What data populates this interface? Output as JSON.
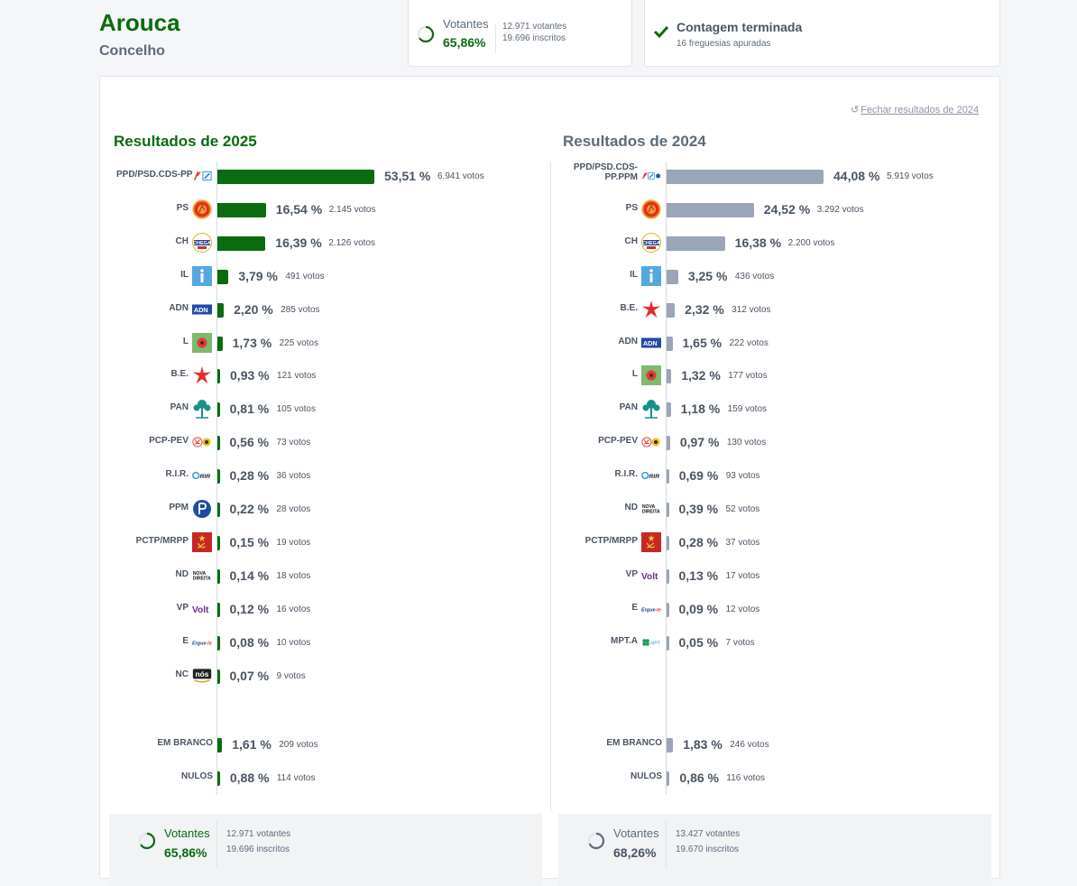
{
  "header": {
    "title": "Arouca",
    "subtitle": "Concelho"
  },
  "turnout": {
    "label": "Votantes",
    "percent": "65,86%",
    "voters": "12.971 votantes",
    "registered": "19.696 inscritos"
  },
  "count": {
    "title": "Contagem terminada",
    "subtitle": "16 freguesias apuradas"
  },
  "close_link": "Fechar resultados de 2024",
  "colors": {
    "current": "#0b6b10",
    "previous": "#9aa5b8",
    "text": "#4a5563"
  },
  "results_2025": {
    "title": "Resultados de 2025",
    "scale_max": 53.51,
    "parties": [
      {
        "name": "PPD/PSD.CDS-PP",
        "logo": "psd-cds-logo",
        "pct": "53,51 %",
        "value": 53.51,
        "votes": "6.941 votos"
      },
      {
        "name": "PS",
        "logo": "ps-logo",
        "pct": "16,54 %",
        "value": 16.54,
        "votes": "2.145 votos"
      },
      {
        "name": "CH",
        "logo": "chega-logo",
        "pct": "16,39 %",
        "value": 16.39,
        "votes": "2.126 votos"
      },
      {
        "name": "IL",
        "logo": "il-logo",
        "pct": "3,79 %",
        "value": 3.79,
        "votes": "491 votos"
      },
      {
        "name": "ADN",
        "logo": "adn-logo",
        "pct": "2,20 %",
        "value": 2.2,
        "votes": "285 votos"
      },
      {
        "name": "L",
        "logo": "livre-logo",
        "pct": "1,73 %",
        "value": 1.73,
        "votes": "225 votos"
      },
      {
        "name": "B.E.",
        "logo": "be-logo",
        "pct": "0,93 %",
        "value": 0.93,
        "votes": "121 votos"
      },
      {
        "name": "PAN",
        "logo": "pan-logo",
        "pct": "0,81 %",
        "value": 0.81,
        "votes": "105 votos"
      },
      {
        "name": "PCP-PEV",
        "logo": "pcp-pev-logo",
        "pct": "0,56 %",
        "value": 0.56,
        "votes": "73 votos"
      },
      {
        "name": "R.I.R.",
        "logo": "rir-logo",
        "pct": "0,28 %",
        "value": 0.28,
        "votes": "36 votos"
      },
      {
        "name": "PPM",
        "logo": "ppm-logo",
        "pct": "0,22 %",
        "value": 0.22,
        "votes": "28 votos"
      },
      {
        "name": "PCTP/MRPP",
        "logo": "pctp-logo",
        "pct": "0,15 %",
        "value": 0.15,
        "votes": "19 votos"
      },
      {
        "name": "ND",
        "logo": "nd-logo",
        "pct": "0,14 %",
        "value": 0.14,
        "votes": "18 votos"
      },
      {
        "name": "VP",
        "logo": "volt-logo",
        "pct": "0,12 %",
        "value": 0.12,
        "votes": "16 votos"
      },
      {
        "name": "E",
        "logo": "ergue-te-logo",
        "pct": "0,08 %",
        "value": 0.08,
        "votes": "10 votos"
      },
      {
        "name": "NC",
        "logo": "nos-cidadaos-logo",
        "pct": "0,07 %",
        "value": 0.07,
        "votes": "9 votos"
      }
    ],
    "blank": {
      "name": "EM BRANCO",
      "pct": "1,61 %",
      "value": 1.61,
      "votes": "209 votos"
    },
    "null": {
      "name": "NULOS",
      "pct": "0,88 %",
      "value": 0.88,
      "votes": "114 votos"
    },
    "turnout": {
      "label": "Votantes",
      "percent": "65,86%",
      "voters": "12.971 votantes",
      "registered": "19.696 inscritos"
    }
  },
  "results_2024": {
    "title": "Resultados de 2024",
    "scale_max": 44.08,
    "parties": [
      {
        "name": "PPD/PSD.CDS-PP.PPM",
        "logo": "psd-cds-ppm-logo",
        "pct": "44,08 %",
        "value": 44.08,
        "votes": "5.919 votos"
      },
      {
        "name": "PS",
        "logo": "ps-logo",
        "pct": "24,52 %",
        "value": 24.52,
        "votes": "3.292 votos"
      },
      {
        "name": "CH",
        "logo": "chega-logo",
        "pct": "16,38 %",
        "value": 16.38,
        "votes": "2.200 votos"
      },
      {
        "name": "IL",
        "logo": "il-logo",
        "pct": "3,25 %",
        "value": 3.25,
        "votes": "436 votos"
      },
      {
        "name": "B.E.",
        "logo": "be-logo",
        "pct": "2,32 %",
        "value": 2.32,
        "votes": "312 votos"
      },
      {
        "name": "ADN",
        "logo": "adn-logo",
        "pct": "1,65 %",
        "value": 1.65,
        "votes": "222 votos"
      },
      {
        "name": "L",
        "logo": "livre-logo",
        "pct": "1,32 %",
        "value": 1.32,
        "votes": "177 votos"
      },
      {
        "name": "PAN",
        "logo": "pan-logo",
        "pct": "1,18 %",
        "value": 1.18,
        "votes": "159 votos"
      },
      {
        "name": "PCP-PEV",
        "logo": "pcp-pev-logo",
        "pct": "0,97 %",
        "value": 0.97,
        "votes": "130 votos"
      },
      {
        "name": "R.I.R.",
        "logo": "rir-logo",
        "pct": "0,69 %",
        "value": 0.69,
        "votes": "93 votos"
      },
      {
        "name": "ND",
        "logo": "nd-logo",
        "pct": "0,39 %",
        "value": 0.39,
        "votes": "52 votos"
      },
      {
        "name": "PCTP/MRPP",
        "logo": "pctp-logo",
        "pct": "0,28 %",
        "value": 0.28,
        "votes": "37 votos"
      },
      {
        "name": "VP",
        "logo": "volt-logo",
        "pct": "0,13 %",
        "value": 0.13,
        "votes": "17 votos"
      },
      {
        "name": "E",
        "logo": "ergue-te-logo",
        "pct": "0,09 %",
        "value": 0.09,
        "votes": "12 votos"
      },
      {
        "name": "MPT.A",
        "logo": "mpt-logo",
        "pct": "0,05 %",
        "value": 0.05,
        "votes": "7 votos"
      }
    ],
    "blank": {
      "name": "EM BRANCO",
      "pct": "1,83 %",
      "value": 1.83,
      "votes": "246 votos"
    },
    "null": {
      "name": "NULOS",
      "pct": "0,86 %",
      "value": 0.86,
      "votes": "116 votos"
    },
    "turnout": {
      "label": "Votantes",
      "percent": "68,26%",
      "voters": "13.427 votantes",
      "registered": "19.670 inscritos"
    }
  },
  "logo_text": {
    "adn": "ADN",
    "rir": "RIR",
    "nd": "NOVA DIREITA",
    "volt": "Volt",
    "ergue": "Ergue-te",
    "nc": "nós",
    "mpt": "MPT"
  }
}
